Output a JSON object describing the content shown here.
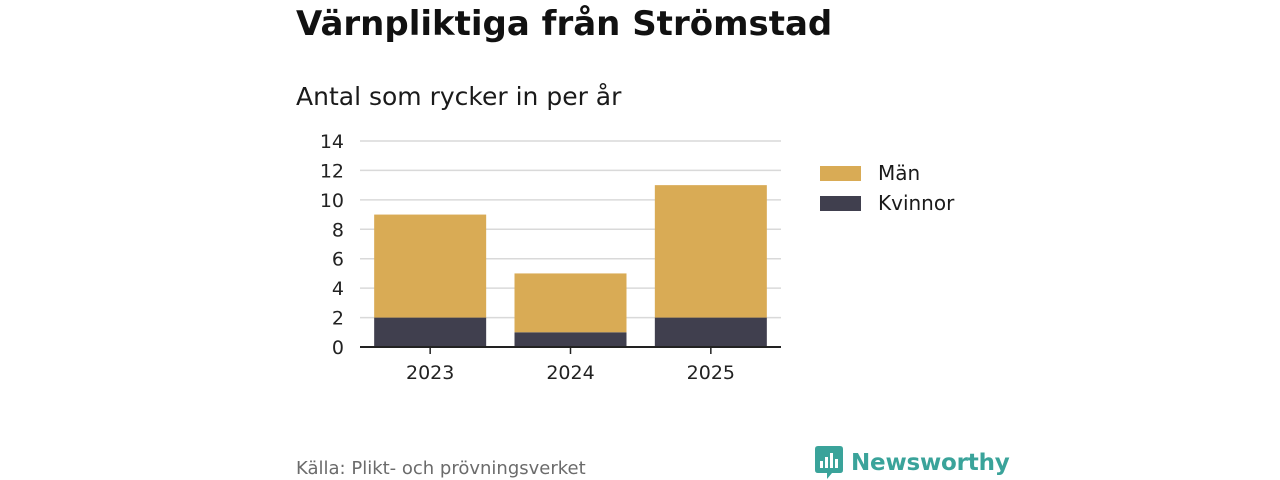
{
  "header": {
    "title": "Värnpliktiga från Strömstad",
    "subtitle": "Antal som rycker in per år"
  },
  "footer": {
    "source": "Källa: Plikt- och prövningsverket",
    "brand": "Newsworthy"
  },
  "colors": {
    "men": "#d9ab55",
    "women": "#403f4e",
    "grid": "#d9d9d9",
    "axis": "#222222",
    "brand": "#3aa39a"
  },
  "chart_data": {
    "type": "bar",
    "stacked": true,
    "title": "Värnpliktiga från Strömstad",
    "subtitle": "Antal som rycker in per år",
    "categories": [
      "2023",
      "2024",
      "2025"
    ],
    "series": [
      {
        "name": "Kvinnor",
        "values": [
          2,
          1,
          2
        ]
      },
      {
        "name": "Män",
        "values": [
          7,
          4,
          9
        ]
      }
    ],
    "ylim": [
      0,
      14
    ],
    "yticks": [
      "0",
      "2",
      "4",
      "6",
      "8",
      "10",
      "12",
      "14"
    ],
    "grid": true,
    "legend": {
      "placement": "right",
      "entries": [
        "Män",
        "Kvinnor"
      ]
    },
    "xlabel": "",
    "ylabel": ""
  }
}
